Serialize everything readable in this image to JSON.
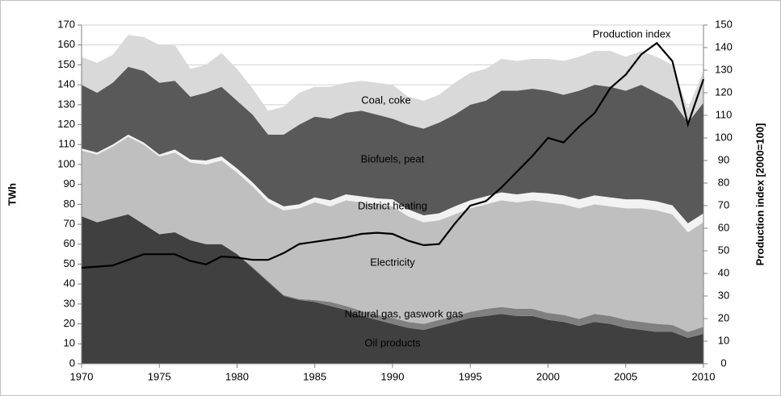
{
  "chart_data": {
    "type": "stacked_area",
    "y_label": "TWh",
    "y2_label": "Production index [2000=100]",
    "x": [
      1970,
      1971,
      1972,
      1973,
      1974,
      1975,
      1976,
      1977,
      1978,
      1979,
      1980,
      1981,
      1982,
      1983,
      1984,
      1985,
      1986,
      1987,
      1988,
      1989,
      1990,
      1991,
      1992,
      1993,
      1994,
      1995,
      1996,
      1997,
      1998,
      1999,
      2000,
      2001,
      2002,
      2003,
      2004,
      2005,
      2006,
      2007,
      2008,
      2009,
      2010
    ],
    "xlim": [
      1970,
      2010
    ],
    "xticks": [
      1970,
      1975,
      1980,
      1985,
      1990,
      1995,
      2000,
      2005,
      2010
    ],
    "ylim": [
      0,
      170
    ],
    "yticks": [
      0,
      10,
      20,
      30,
      40,
      50,
      60,
      70,
      80,
      90,
      100,
      110,
      120,
      130,
      140,
      150,
      160,
      170
    ],
    "y2lim": [
      0,
      150
    ],
    "y2ticks": [
      0,
      10,
      20,
      30,
      40,
      50,
      60,
      70,
      80,
      90,
      100,
      110,
      120,
      130,
      140,
      150
    ],
    "grid": true,
    "series": [
      {
        "name": "Oil products",
        "color": "#404040",
        "values": [
          74,
          71,
          73,
          75,
          70,
          65,
          66,
          62,
          60,
          60,
          55,
          48,
          41,
          34,
          32,
          31,
          29,
          27,
          24,
          22,
          20,
          18,
          17,
          19,
          21,
          23,
          24,
          25,
          24,
          24,
          22,
          21,
          19,
          21,
          20,
          18,
          17,
          16,
          16,
          13,
          15
        ]
      },
      {
        "name": "Natural gas, gaswork gas",
        "color": "#808080",
        "values": [
          0,
          0,
          0,
          0,
          0,
          0,
          0,
          0,
          0,
          0,
          0,
          0.5,
          0.5,
          0.5,
          0.5,
          1,
          2,
          2,
          2.5,
          2.5,
          3,
          3,
          3,
          3,
          3,
          3,
          3.5,
          3.5,
          3.5,
          3.5,
          3.5,
          3.5,
          3.5,
          4,
          4,
          4,
          4,
          4,
          3.5,
          3,
          3.5
        ]
      },
      {
        "name": "Electricity",
        "color": "#bfbfbf",
        "values": [
          33,
          34,
          36,
          39,
          40,
          39,
          40,
          39,
          40,
          42,
          41,
          40.5,
          39.5,
          42.5,
          45.5,
          49,
          48,
          53,
          54.5,
          55.5,
          56,
          53,
          51,
          50,
          51,
          52,
          52.5,
          53.5,
          53.5,
          54.5,
          55.5,
          55.5,
          55.5,
          55,
          55,
          56,
          57,
          57,
          55.5,
          50,
          52.5
        ]
      },
      {
        "name": "District heating",
        "color": "#f2f2f2",
        "values": [
          1,
          1,
          1,
          1,
          1,
          1,
          1.5,
          1.5,
          2,
          2,
          2,
          2,
          2,
          2,
          2,
          2.5,
          3,
          3,
          3,
          3,
          3.5,
          3.5,
          3.5,
          3.5,
          4,
          4,
          4,
          4,
          4,
          4,
          4.5,
          4.5,
          4.5,
          4.5,
          4.5,
          4.5,
          4.5,
          4.5,
          4.5,
          4.5,
          4.5
        ]
      },
      {
        "name": "Biofuels, peat",
        "color": "#595959",
        "values": [
          32,
          30,
          31,
          34,
          36,
          36,
          34.5,
          31.5,
          34,
          35,
          34,
          34,
          32,
          36,
          40,
          40.5,
          41,
          41,
          43,
          42,
          40.5,
          42.5,
          43.5,
          45.5,
          46,
          48,
          48,
          51,
          52,
          52,
          51.5,
          50.5,
          54.5,
          55.5,
          55.5,
          54.5,
          57.5,
          54.5,
          52.5,
          50.5,
          55.5
        ]
      },
      {
        "name": "Coal, coke",
        "color": "#d9d9d9",
        "values": [
          14,
          15,
          14,
          16,
          17,
          19,
          18,
          14,
          14,
          17,
          16,
          13,
          12,
          14,
          16,
          15,
          16,
          15,
          15,
          16,
          17,
          14,
          14,
          14,
          16,
          16,
          16,
          16,
          15,
          15,
          16,
          17,
          17,
          17,
          18,
          17,
          17,
          18,
          18,
          7,
          16
        ]
      },
      {
        "name": "Production index",
        "color": "#000000",
        "axis": "y2",
        "values": [
          42.5,
          43,
          43.5,
          46,
          48.5,
          48.5,
          48.5,
          45.5,
          44,
          47.5,
          47,
          46,
          46,
          49,
          53,
          54,
          55,
          56,
          57.5,
          58,
          57.5,
          54.5,
          52.5,
          53,
          62,
          70,
          72,
          78,
          85,
          92,
          100,
          98,
          105,
          111,
          122,
          128,
          137,
          142,
          134,
          106,
          126
        ]
      }
    ]
  }
}
